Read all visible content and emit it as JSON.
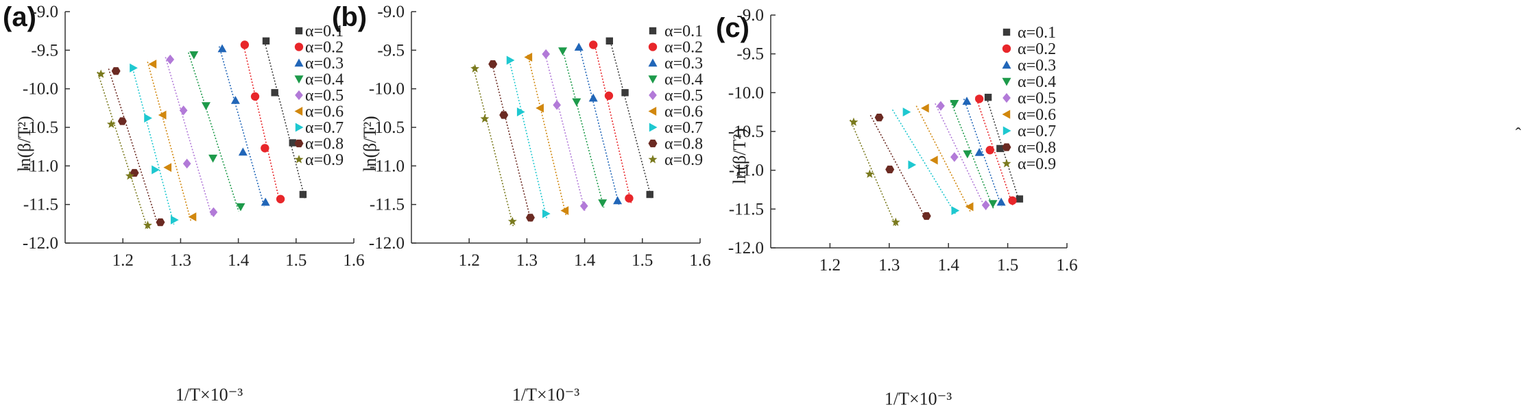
{
  "figure": {
    "panels": [
      {
        "letter": "(a)",
        "xlabel": "1/T×10⁻³",
        "ylabel": "ln(β/T²)"
      },
      {
        "letter": "(b)",
        "xlabel": "1/T×10⁻³",
        "ylabel": "ln(β/T²)"
      },
      {
        "letter": "(c)",
        "xlabel": "1/T×10⁻³",
        "ylabel": "ln(β/T²)"
      }
    ],
    "stray_mark": "ˆ"
  },
  "chart_data": [
    {
      "type": "scatter",
      "panel": "(a)",
      "xlabel": "1/T×10⁻³",
      "ylabel": "ln(β/T²)",
      "xlim": [
        1.1,
        1.6
      ],
      "ylim": [
        -12.0,
        -9.0
      ],
      "x_ticks": [
        "1.2",
        "1.3",
        "1.4",
        "1.5",
        "1.6"
      ],
      "y_ticks": [
        "-9.0",
        "-9.5",
        "-10.0",
        "-10.5",
        "-11.0",
        "-11.5",
        "-12.0"
      ],
      "legend_position": "top-right",
      "fit_lines": true,
      "series": [
        {
          "name": "α=0.1",
          "marker": "square",
          "color": "#3a3a3a",
          "x": [
            1.448,
            1.463,
            1.494,
            1.512
          ],
          "y": [
            -9.38,
            -10.05,
            -10.7,
            -11.37
          ]
        },
        {
          "name": "α=0.2",
          "marker": "circle",
          "color": "#e8262a",
          "x": [
            1.411,
            1.429,
            1.446,
            1.473
          ],
          "y": [
            -9.43,
            -10.1,
            -10.77,
            -11.43
          ]
        },
        {
          "name": "α=0.3",
          "marker": "triangle-up",
          "color": "#2166b8",
          "x": [
            1.372,
            1.395,
            1.408,
            1.447
          ],
          "y": [
            -9.48,
            -10.15,
            -10.82,
            -11.47
          ]
        },
        {
          "name": "α=0.4",
          "marker": "triangle-down",
          "color": "#1d9a4a",
          "x": [
            1.323,
            1.344,
            1.356,
            1.404
          ],
          "y": [
            -9.56,
            -10.22,
            -10.9,
            -11.53
          ]
        },
        {
          "name": "α=0.5",
          "marker": "diamond",
          "color": "#b27ad8",
          "x": [
            1.282,
            1.305,
            1.311,
            1.357
          ],
          "y": [
            -9.62,
            -10.28,
            -10.97,
            -11.6
          ]
        },
        {
          "name": "α=0.6",
          "marker": "triangle-left",
          "color": "#d1870d",
          "x": [
            1.252,
            1.269,
            1.278,
            1.321
          ],
          "y": [
            -9.68,
            -10.34,
            -11.02,
            -11.66
          ]
        },
        {
          "name": "α=0.7",
          "marker": "triangle-right",
          "color": "#1ec8d0",
          "x": [
            1.218,
            1.243,
            1.256,
            1.289
          ],
          "y": [
            -9.73,
            -10.38,
            -11.05,
            -11.7
          ]
        },
        {
          "name": "α=0.8",
          "marker": "hexagon",
          "color": "#6b2a22",
          "x": [
            1.188,
            1.199,
            1.22,
            1.265
          ],
          "y": [
            -9.77,
            -10.42,
            -11.09,
            -11.73
          ]
        },
        {
          "name": "α=0.9",
          "marker": "star",
          "color": "#7a7a1e",
          "x": [
            1.162,
            1.18,
            1.212,
            1.243
          ],
          "y": [
            -9.81,
            -10.46,
            -11.13,
            -11.77
          ]
        }
      ]
    },
    {
      "type": "scatter",
      "panel": "(b)",
      "xlabel": "1/T×10⁻³",
      "ylabel": "ln(β/T²)",
      "xlim": [
        1.1,
        1.6
      ],
      "ylim": [
        -12.0,
        -9.0
      ],
      "x_ticks": [
        "1.2",
        "1.3",
        "1.4",
        "1.5",
        "1.6"
      ],
      "y_ticks": [
        "-9.0",
        "-9.5",
        "-10.0",
        "-10.5",
        "-11.0",
        "-11.5",
        "-12.0"
      ],
      "legend_position": "top-right",
      "fit_lines": true,
      "series": [
        {
          "name": "α=0.1",
          "marker": "square",
          "color": "#3a3a3a",
          "x": [
            1.443,
            1.47,
            1.513
          ],
          "y": [
            -9.38,
            -10.05,
            -11.37
          ]
        },
        {
          "name": "α=0.2",
          "marker": "circle",
          "color": "#e8262a",
          "x": [
            1.415,
            1.442,
            1.477
          ],
          "y": [
            -9.43,
            -10.09,
            -11.42
          ]
        },
        {
          "name": "α=0.3",
          "marker": "triangle-up",
          "color": "#2166b8",
          "x": [
            1.39,
            1.415,
            1.457
          ],
          "y": [
            -9.46,
            -10.12,
            -11.45
          ]
        },
        {
          "name": "α=0.4",
          "marker": "triangle-down",
          "color": "#1d9a4a",
          "x": [
            1.362,
            1.386,
            1.431
          ],
          "y": [
            -9.51,
            -10.17,
            -11.48
          ]
        },
        {
          "name": "α=0.5",
          "marker": "diamond",
          "color": "#b27ad8",
          "x": [
            1.333,
            1.352,
            1.399
          ],
          "y": [
            -9.55,
            -10.21,
            -11.52
          ]
        },
        {
          "name": "α=0.6",
          "marker": "triangle-left",
          "color": "#d1870d",
          "x": [
            1.303,
            1.323,
            1.366
          ],
          "y": [
            -9.59,
            -10.25,
            -11.58
          ]
        },
        {
          "name": "α=0.7",
          "marker": "triangle-right",
          "color": "#1ec8d0",
          "x": [
            1.271,
            1.289,
            1.333
          ],
          "y": [
            -9.63,
            -10.3,
            -11.62
          ]
        },
        {
          "name": "α=0.8",
          "marker": "hexagon",
          "color": "#6b2a22",
          "x": [
            1.241,
            1.26,
            1.306
          ],
          "y": [
            -9.68,
            -10.34,
            -11.67
          ]
        },
        {
          "name": "α=0.9",
          "marker": "star",
          "color": "#7a7a1e",
          "x": [
            1.21,
            1.227,
            1.275
          ],
          "y": [
            -9.74,
            -10.39,
            -11.72
          ]
        }
      ]
    },
    {
      "type": "scatter",
      "panel": "(c)",
      "xlabel": "1/T×10⁻³",
      "ylabel": "ln(β/T²)",
      "xlim": [
        1.1,
        1.6
      ],
      "ylim": [
        -12.0,
        -9.0
      ],
      "x_ticks": [
        "1.2",
        "1.3",
        "1.4",
        "1.5",
        "1.6"
      ],
      "y_ticks": [
        "-9.0",
        "-9.5",
        "-10.0",
        "-10.5",
        "-11.0",
        "-11.5",
        "-12.0"
      ],
      "legend_position": "top-right",
      "fit_lines": true,
      "series": [
        {
          "name": "α=0.1",
          "marker": "square",
          "color": "#3a3a3a",
          "x": [
            1.467,
            1.487,
            1.52
          ],
          "y": [
            -10.06,
            -10.72,
            -11.37
          ]
        },
        {
          "name": "α=0.2",
          "marker": "circle",
          "color": "#e8262a",
          "x": [
            1.452,
            1.47,
            1.508
          ],
          "y": [
            -10.08,
            -10.74,
            -11.39
          ]
        },
        {
          "name": "α=0.3",
          "marker": "triangle-up",
          "color": "#2166b8",
          "x": [
            1.431,
            1.452,
            1.489
          ],
          "y": [
            -10.11,
            -10.77,
            -11.41
          ]
        },
        {
          "name": "α=0.4",
          "marker": "triangle-down",
          "color": "#1d9a4a",
          "x": [
            1.41,
            1.432,
            1.475
          ],
          "y": [
            -10.14,
            -10.79,
            -11.43
          ]
        },
        {
          "name": "α=0.5",
          "marker": "diamond",
          "color": "#b27ad8",
          "x": [
            1.387,
            1.41,
            1.463
          ],
          "y": [
            -10.17,
            -10.83,
            -11.45
          ]
        },
        {
          "name": "α=0.6",
          "marker": "triangle-left",
          "color": "#d1870d",
          "x": [
            1.361,
            1.376,
            1.436
          ],
          "y": [
            -10.2,
            -10.87,
            -11.47
          ]
        },
        {
          "name": "α=0.7",
          "marker": "triangle-right",
          "color": "#1ec8d0",
          "x": [
            1.329,
            1.338,
            1.411
          ],
          "y": [
            -10.25,
            -10.93,
            -11.52
          ]
        },
        {
          "name": "α=0.8",
          "marker": "hexagon",
          "color": "#6b2a22",
          "x": [
            1.283,
            1.301,
            1.363
          ],
          "y": [
            -10.32,
            -10.99,
            -11.59
          ]
        },
        {
          "name": "α=0.9",
          "marker": "star",
          "color": "#7a7a1e",
          "x": [
            1.24,
            1.267,
            1.311
          ],
          "y": [
            -10.38,
            -11.05,
            -11.67
          ]
        }
      ]
    }
  ]
}
